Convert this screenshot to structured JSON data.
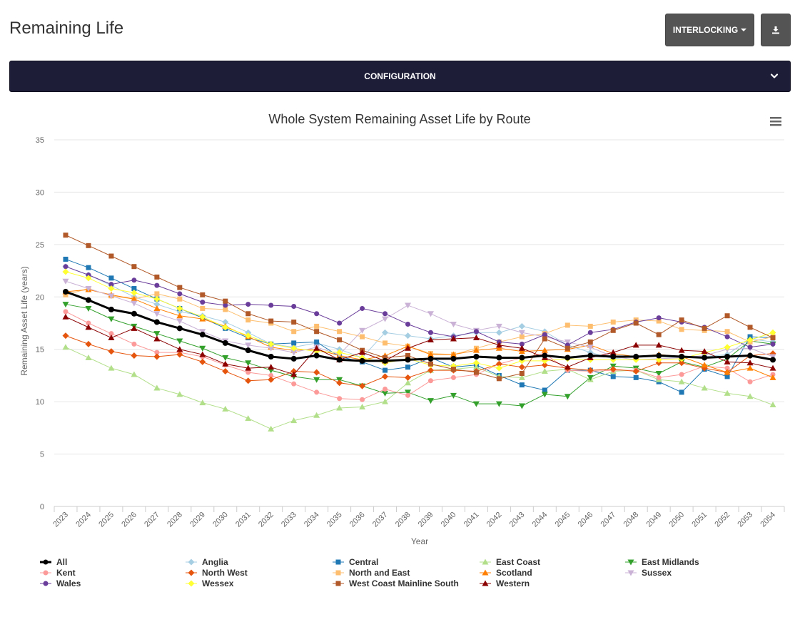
{
  "header": {
    "title": "Remaining Life",
    "interlocking_label": "INTERLOCKING",
    "download_icon": "download-icon"
  },
  "config": {
    "label": "CONFIGURATION",
    "chevron_icon": "chevron-down-icon"
  },
  "chart_menu_icon": "hamburger-menu-icon",
  "chart_data": {
    "type": "line",
    "title": "Whole System Remaining Asset Life by Route",
    "xlabel": "Year",
    "ylabel": "Remaining Asset Life (years)",
    "ylim": [
      0,
      35
    ],
    "yticks": [
      "0",
      "5",
      "10",
      "15",
      "20",
      "25",
      "30",
      "35"
    ],
    "grid": true,
    "legend_position": "bottom",
    "categories": [
      "2023",
      "2024",
      "2025",
      "2026",
      "2027",
      "2028",
      "2029",
      "2030",
      "2031",
      "2032",
      "2033",
      "2034",
      "2035",
      "2036",
      "2037",
      "2038",
      "2039",
      "2040",
      "2041",
      "2042",
      "2043",
      "2044",
      "2045",
      "2046",
      "2047",
      "2048",
      "2049",
      "2050",
      "2051",
      "2052",
      "2053",
      "2054"
    ],
    "series": [
      {
        "name": "All",
        "color": "#000000",
        "marker": "circle",
        "values": [
          20.5,
          19.7,
          18.8,
          18.4,
          17.6,
          17.0,
          16.4,
          15.6,
          14.9,
          14.3,
          14.1,
          14.4,
          14.0,
          13.9,
          13.9,
          14.0,
          14.1,
          14.1,
          14.3,
          14.2,
          14.2,
          14.4,
          14.2,
          14.4,
          14.3,
          14.3,
          14.4,
          14.3,
          14.2,
          14.3,
          14.4,
          14.0
        ]
      },
      {
        "name": "Anglia",
        "color": "#a6cee3",
        "marker": "diamond",
        "values": [
          22.9,
          22.1,
          21.1,
          20.0,
          19.3,
          18.6,
          18.2,
          17.6,
          16.6,
          15.5,
          15.2,
          15.6,
          15.0,
          14.2,
          16.6,
          16.3,
          16.0,
          16.3,
          16.6,
          16.6,
          17.2,
          16.7,
          15.4,
          14.7,
          14.1,
          14.3,
          14.3,
          14.2,
          14.3,
          14.5,
          16.0,
          15.7
        ]
      },
      {
        "name": "Central",
        "color": "#1f78b4",
        "marker": "square",
        "values": [
          23.6,
          22.8,
          21.8,
          20.8,
          19.8,
          18.9,
          18.0,
          17.0,
          16.1,
          15.5,
          15.6,
          15.7,
          14.3,
          13.8,
          13.0,
          13.3,
          14.2,
          13.3,
          13.5,
          12.5,
          11.6,
          11.1,
          13.0,
          13.0,
          12.4,
          12.3,
          11.9,
          10.9,
          13.1,
          12.4,
          16.2,
          16.1
        ]
      },
      {
        "name": "East Coast",
        "color": "#b2df8a",
        "marker": "triangle-up",
        "values": [
          15.2,
          14.2,
          13.2,
          12.6,
          11.3,
          10.7,
          9.9,
          9.3,
          8.4,
          7.4,
          8.2,
          8.7,
          9.4,
          9.5,
          10.0,
          11.8,
          13.0,
          13.1,
          13.3,
          12.4,
          12.3,
          12.9,
          13.1,
          12.1,
          12.9,
          13.0,
          12.1,
          11.9,
          11.3,
          10.8,
          10.5,
          9.7
        ]
      },
      {
        "name": "East Midlands",
        "color": "#33a02c",
        "marker": "triangle-down",
        "values": [
          19.3,
          18.9,
          17.9,
          17.2,
          16.5,
          15.8,
          15.1,
          14.2,
          13.7,
          13.0,
          12.4,
          12.1,
          12.1,
          11.5,
          10.8,
          10.9,
          10.1,
          10.6,
          9.8,
          9.8,
          9.6,
          10.7,
          10.5,
          12.3,
          13.4,
          13.2,
          12.7,
          13.8,
          13.3,
          14.1,
          15.8,
          15.5
        ]
      },
      {
        "name": "Kent",
        "color": "#fb9a99",
        "marker": "circle",
        "values": [
          18.6,
          17.5,
          16.5,
          15.5,
          14.7,
          14.7,
          14.3,
          13.5,
          12.8,
          12.5,
          11.7,
          10.9,
          10.3,
          10.2,
          11.2,
          10.6,
          12.0,
          12.3,
          12.6,
          13.6,
          14.2,
          14.6,
          13.0,
          12.9,
          13.0,
          13.0,
          12.3,
          12.6,
          13.4,
          13.2,
          11.9,
          12.6
        ]
      },
      {
        "name": "North West",
        "color": "#e6550d",
        "marker": "diamond",
        "values": [
          16.3,
          15.5,
          14.8,
          14.4,
          14.3,
          14.5,
          13.8,
          12.9,
          12.0,
          12.1,
          12.9,
          12.8,
          11.8,
          11.5,
          12.4,
          12.3,
          13.0,
          13.0,
          12.9,
          13.6,
          13.3,
          13.5,
          13.2,
          13.0,
          13.1,
          12.9,
          13.7,
          13.7,
          13.2,
          12.8,
          14.4,
          14.6
        ]
      },
      {
        "name": "North and East",
        "color": "#fdbf6f",
        "marker": "square",
        "values": [
          20.2,
          20.8,
          20.1,
          19.8,
          20.3,
          19.8,
          18.9,
          18.8,
          17.8,
          17.5,
          16.7,
          17.2,
          16.7,
          16.2,
          15.6,
          15.3,
          14.6,
          14.5,
          15.1,
          15.7,
          16.2,
          16.5,
          17.3,
          17.2,
          17.6,
          17.8,
          17.7,
          16.9,
          16.8,
          16.7,
          15.7,
          16.2
        ]
      },
      {
        "name": "Scotland",
        "color": "#ff7f00",
        "marker": "triangle-up",
        "values": [
          20.5,
          20.7,
          20.2,
          19.8,
          18.9,
          18.2,
          17.9,
          17.2,
          16.2,
          15.2,
          14.9,
          15.0,
          14.4,
          14.0,
          14.4,
          15.3,
          14.5,
          14.5,
          14.9,
          15.1,
          14.8,
          14.9,
          15.0,
          15.4,
          14.6,
          14.3,
          14.5,
          14.3,
          13.5,
          12.8,
          13.2,
          12.3
        ]
      },
      {
        "name": "Sussex",
        "color": "#cab2d6",
        "marker": "triangle-down",
        "values": [
          21.5,
          20.8,
          20.1,
          19.4,
          18.4,
          17.7,
          16.7,
          15.8,
          15.4,
          15.1,
          14.7,
          15.2,
          14.5,
          16.8,
          17.9,
          19.2,
          18.4,
          17.4,
          16.8,
          17.2,
          16.6,
          16.2,
          15.7,
          15.2,
          14.3,
          14.0,
          14.1,
          14.2,
          14.4,
          15.0,
          15.1,
          14.3
        ]
      },
      {
        "name": "Wales",
        "color": "#6a3d9a",
        "marker": "circle",
        "values": [
          22.9,
          22.1,
          21.2,
          21.6,
          21.1,
          20.3,
          19.5,
          19.2,
          19.3,
          19.2,
          19.1,
          18.4,
          17.5,
          18.9,
          18.4,
          17.4,
          16.6,
          16.2,
          16.7,
          15.7,
          15.5,
          16.4,
          15.4,
          16.6,
          16.9,
          17.6,
          18.0,
          17.6,
          17.1,
          16.2,
          15.2,
          15.5
        ]
      },
      {
        "name": "Wessex",
        "color": "#ffff33",
        "marker": "diamond",
        "values": [
          22.4,
          21.8,
          20.8,
          20.4,
          19.8,
          18.9,
          18.1,
          17.1,
          16.3,
          15.5,
          15.1,
          14.8,
          14.7,
          14.2,
          13.7,
          14.1,
          13.5,
          13.4,
          13.7,
          13.2,
          13.9,
          13.9,
          14.1,
          14.0,
          14.0,
          14.0,
          14.0,
          14.1,
          14.7,
          15.2,
          15.9,
          16.6
        ]
      },
      {
        "name": "West Coast Mainline South",
        "color": "#b15928",
        "marker": "square",
        "values": [
          25.9,
          24.9,
          23.9,
          22.9,
          21.9,
          20.9,
          20.2,
          19.6,
          18.4,
          17.7,
          17.6,
          16.7,
          15.9,
          14.9,
          14.2,
          14.4,
          13.6,
          13.1,
          12.8,
          12.2,
          12.7,
          16.0,
          15.1,
          15.7,
          16.8,
          17.5,
          16.4,
          17.8,
          17.0,
          18.2,
          17.1,
          16.1
        ]
      },
      {
        "name": "Western",
        "color": "#8b0000",
        "marker": "triangle-up",
        "values": [
          18.1,
          17.1,
          16.1,
          17.0,
          16.0,
          15.0,
          14.5,
          13.6,
          13.2,
          13.3,
          12.6,
          15.1,
          14.0,
          14.7,
          13.9,
          15.1,
          15.9,
          16.0,
          16.1,
          15.4,
          15.1,
          14.2,
          13.3,
          14.2,
          14.7,
          15.4,
          15.4,
          14.9,
          14.8,
          13.8,
          13.7,
          13.2
        ]
      }
    ]
  }
}
